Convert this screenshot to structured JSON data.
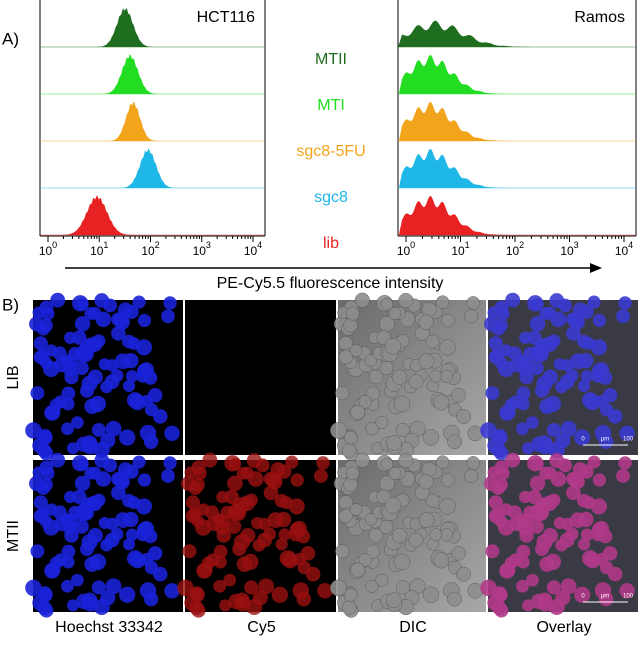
{
  "panel_a": {
    "label": "A)",
    "left_title": "HCT116",
    "right_title": "Ramos",
    "legend": [
      {
        "name": "MTII",
        "color": "#1f6e1f"
      },
      {
        "name": "MTI",
        "color": "#22dd22"
      },
      {
        "name": "sgc8-5FU",
        "color": "#f2a51c"
      },
      {
        "name": "sgc8",
        "color": "#1fb6e8"
      },
      {
        "name": "lib",
        "color": "#e82222"
      }
    ],
    "tick_base": "10",
    "tick_exponents": [
      "0",
      "1",
      "2",
      "3",
      "4"
    ],
    "x_label": "PE-Cy5.5 fluorescence intensity"
  },
  "panel_b": {
    "label": "B)",
    "row_labels": [
      "LIB",
      "MTII"
    ],
    "column_labels": [
      "Hoechst 33342",
      "Cy5",
      "DIC",
      "Overlay"
    ],
    "scale_bar": {
      "start": "0",
      "unit": "μm",
      "end": "100"
    }
  }
}
